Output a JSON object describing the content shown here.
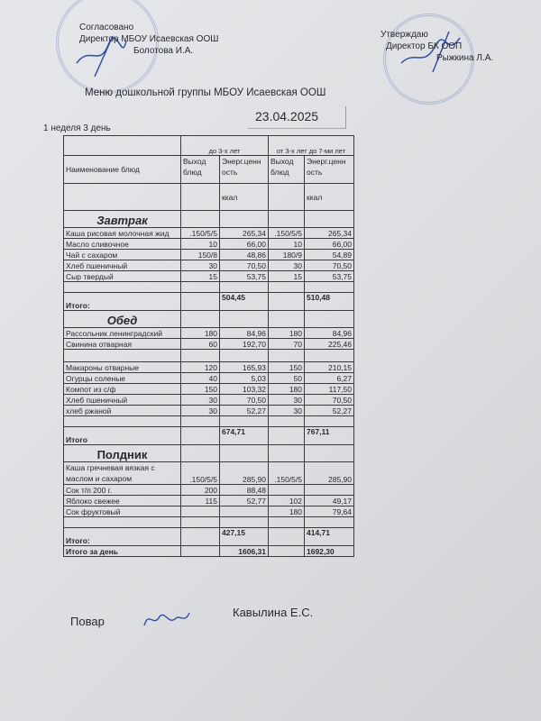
{
  "approval_left": {
    "line1": "Согласовано",
    "line2": "Директор МБОУ Исаевская ООШ",
    "line3": "Болотова И.А."
  },
  "approval_right": {
    "line1": "Утверждаю",
    "line2": "Директор БК ООП",
    "line3": "Рыжкина Л.А."
  },
  "title": "Меню  дошкольной группы МБОУ Исаевская ООШ",
  "date": "23.04.2025",
  "week_day": "1 неделя 3 день",
  "table": {
    "age_group_1": "до 3-х лет",
    "age_group_2": "от 3-х лет до 7-ми лет",
    "col_name": "Наименование блюд",
    "col_output": "Выход блюд",
    "col_energy": "Энерг.ценн ость",
    "unit": "ккал",
    "sections": [
      {
        "title": "Завтрак",
        "italic": true,
        "rows": [
          [
            "Каша рисовая  молочная жид",
            ".150/5/5",
            "265,34",
            ".150/5/5",
            "265,34"
          ],
          [
            "Масло сливочное",
            "10",
            "66,00",
            "10",
            "66,00"
          ],
          [
            "Чай с сахаром",
            "150/8",
            "48,86",
            "180/9",
            "54,89"
          ],
          [
            "Хлеб пшеничный",
            "30",
            "70,50",
            "30",
            "70,50"
          ],
          [
            "Сыр твердый",
            "15",
            "53,75",
            "15",
            "53,75"
          ]
        ],
        "total_label": "Итого:",
        "total_1": "504,45",
        "total_2": "510,48"
      },
      {
        "title": "Обед",
        "italic": true,
        "rows": [
          [
            "Рассольник ленинградский",
            "180",
            "84,96",
            "180",
            "84,96"
          ],
          [
            "Свинина отварная",
            "60",
            "192,70",
            "70",
            "225,46"
          ],
          [
            "Макароны отварные",
            "120",
            "165,93",
            "150",
            "210,15"
          ],
          [
            "Огурцы соленые",
            "40",
            "5,03",
            "50",
            "6,27"
          ],
          [
            "Компот из с/ф",
            "150",
            "103,32",
            "180",
            "117,50"
          ],
          [
            "Хлеб пшеничный",
            "30",
            "70,50",
            "30",
            "70,50"
          ],
          [
            "хлеб ржаной",
            "30",
            "52,27",
            "30",
            "52,27"
          ]
        ],
        "total_label": "Итого",
        "total_1": "674,71",
        "total_2": "767,11"
      },
      {
        "title": "Полдник",
        "italic": false,
        "rows": [
          [
            "Каша гречневая вязкая с маслом и сахаром",
            ".150/5/5",
            "285,90",
            ".150/5/5",
            "285,90"
          ],
          [
            "Сок т/п 200 г.",
            "200",
            "88,48",
            "",
            ""
          ],
          [
            "Яблоко свежее",
            "115",
            "52,77",
            "102",
            "49,17"
          ],
          [
            "Сок фруктовый",
            "",
            "",
            "180",
            "79,64"
          ]
        ],
        "total_label": "Итого:",
        "total_1": "427,15",
        "total_2": "414,71"
      }
    ],
    "day_total_label": "Итого за день",
    "day_total_1": "1606,31",
    "day_total_2": "1692,30"
  },
  "cook": {
    "label": "Повар",
    "name": "Кавылина Е.С."
  },
  "colors": {
    "stamp": "#7c8cbf",
    "ink": "#2f4fa8"
  }
}
